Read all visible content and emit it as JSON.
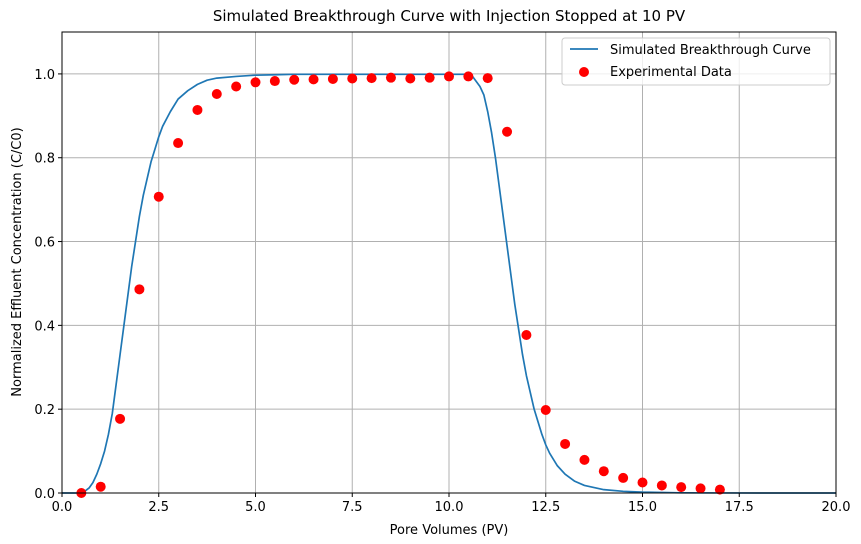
{
  "chart_data": {
    "type": "line+scatter",
    "title": "Simulated Breakthrough Curve with Injection Stopped at 10 PV",
    "xlabel": "Pore Volumes (PV)",
    "ylabel": "Normalized Effluent Concentration (C/C0)",
    "xlim": [
      0,
      20
    ],
    "ylim": [
      0,
      1.1
    ],
    "xticks": [
      0,
      2.5,
      5,
      7.5,
      10,
      12.5,
      15,
      17.5,
      20
    ],
    "xtick_labels": [
      "0.0",
      "2.5",
      "5.0",
      "7.5",
      "10.0",
      "12.5",
      "15.0",
      "17.5",
      "20.0"
    ],
    "yticks": [
      0,
      0.2,
      0.4,
      0.6,
      0.8,
      1.0
    ],
    "ytick_labels": [
      "0.0",
      "0.2",
      "0.4",
      "0.6",
      "0.8",
      "1.0"
    ],
    "grid": true,
    "legend_position": "top-right",
    "series": [
      {
        "name": "Simulated Breakthrough Curve",
        "kind": "line",
        "color": "#1f77b4",
        "x": [
          0,
          0.5,
          0.6,
          0.7,
          0.8,
          0.9,
          1.0,
          1.1,
          1.2,
          1.3,
          1.4,
          1.5,
          1.6,
          1.7,
          1.8,
          1.9,
          2.0,
          2.1,
          2.2,
          2.3,
          2.4,
          2.5,
          2.6,
          2.8,
          3.0,
          3.25,
          3.5,
          3.75,
          4.0,
          4.5,
          5.0,
          5.5,
          6.0,
          7.0,
          8.0,
          9.0,
          10.0,
          10.4,
          10.6,
          10.8,
          10.9,
          11.0,
          11.1,
          11.2,
          11.3,
          11.4,
          11.5,
          11.6,
          11.7,
          11.8,
          11.9,
          12.0,
          12.1,
          12.2,
          12.3,
          12.4,
          12.5,
          12.6,
          12.8,
          13.0,
          13.25,
          13.5,
          14.0,
          14.5,
          15.0,
          16.0,
          17.0,
          18.0,
          19.0,
          20.0
        ],
        "y": [
          0,
          0,
          0.005,
          0.012,
          0.025,
          0.045,
          0.07,
          0.1,
          0.14,
          0.19,
          0.26,
          0.33,
          0.4,
          0.47,
          0.54,
          0.6,
          0.66,
          0.71,
          0.75,
          0.79,
          0.82,
          0.85,
          0.875,
          0.91,
          0.94,
          0.96,
          0.975,
          0.985,
          0.99,
          0.994,
          0.997,
          0.998,
          0.999,
          0.999,
          0.999,
          0.999,
          0.999,
          0.999,
          0.995,
          0.97,
          0.95,
          0.91,
          0.86,
          0.8,
          0.73,
          0.66,
          0.59,
          0.52,
          0.45,
          0.39,
          0.33,
          0.28,
          0.24,
          0.2,
          0.17,
          0.14,
          0.115,
          0.095,
          0.065,
          0.045,
          0.028,
          0.018,
          0.008,
          0.004,
          0.002,
          0.0005,
          0.0001,
          0,
          0,
          0
        ]
      },
      {
        "name": "Experimental Data",
        "kind": "scatter",
        "color": "#ff0000",
        "x": [
          0.5,
          1.0,
          1.5,
          2.0,
          2.5,
          3.0,
          3.5,
          4.0,
          4.5,
          5.0,
          5.5,
          6.0,
          6.5,
          7.0,
          7.5,
          8.0,
          8.5,
          9.0,
          9.5,
          10.0,
          10.5,
          11.0,
          11.5,
          12.0,
          12.5,
          13.0,
          13.5,
          14.0,
          14.5,
          15.0,
          15.5,
          16.0,
          16.5,
          17.0
        ],
        "y": [
          0.0,
          0.015,
          0.177,
          0.486,
          0.707,
          0.835,
          0.914,
          0.952,
          0.97,
          0.98,
          0.983,
          0.986,
          0.987,
          0.988,
          0.989,
          0.99,
          0.991,
          0.989,
          0.991,
          0.994,
          0.994,
          0.99,
          0.862,
          0.377,
          0.198,
          0.117,
          0.079,
          0.052,
          0.036,
          0.025,
          0.018,
          0.014,
          0.011,
          0.008
        ]
      }
    ]
  }
}
